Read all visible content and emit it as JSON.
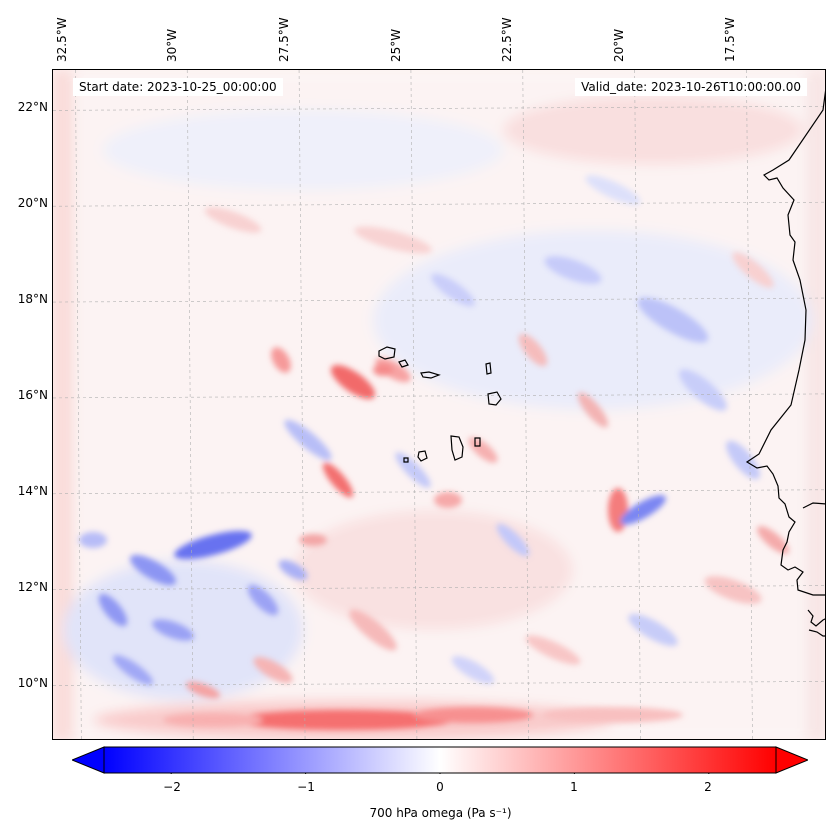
{
  "map": {
    "start_date": "Start date: 2023-10-25_00:00:00",
    "valid_date": "Valid_date: 2023-10-26T10:00:00.00",
    "lon_ticks": [
      "32.5°W",
      "30°W",
      "27.5°W",
      "25°W",
      "22.5°W",
      "20°W",
      "17.5°W"
    ],
    "lat_ticks": [
      "22°N",
      "20°N",
      "18°N",
      "16°N",
      "14°N",
      "12°N",
      "10°N"
    ],
    "lon_values": [
      -32.5,
      -30,
      -27.5,
      -25,
      -22.5,
      -20,
      -17.5
    ],
    "lat_values": [
      22,
      20,
      18,
      16,
      14,
      12,
      10
    ],
    "lon_range": [
      -33.0,
      -15.7
    ],
    "lat_range": [
      8.8,
      22.8
    ],
    "variable": "700 hPa omega",
    "units": "Pa s⁻¹"
  },
  "colorbar": {
    "label": "700 hPa omega (Pa s⁻¹)",
    "tick_labels": [
      "−2",
      "−1",
      "0",
      "1",
      "2"
    ],
    "tick_values": [
      -2,
      -1,
      0,
      1,
      2
    ],
    "range": [
      -2.5,
      2.5
    ],
    "extend": "both",
    "color_min": "#0000ff",
    "color_mid": "#ffffff",
    "color_max": "#ff0000"
  },
  "features": {
    "coastline_color": "#000000",
    "gridline_color": "#b0b0b0"
  }
}
